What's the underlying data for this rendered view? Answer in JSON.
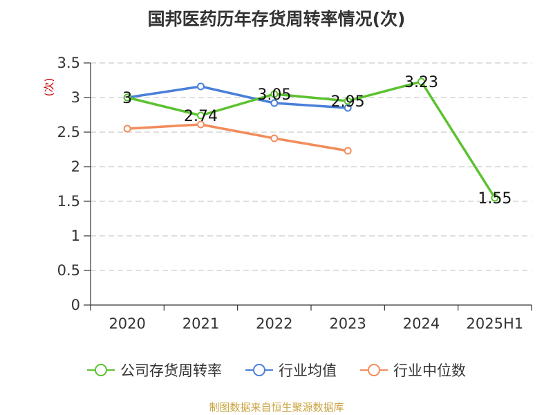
{
  "title": "国邦医药历年存货周转率情况(次)",
  "source": "制图数据来自恒生聚源数据库",
  "chart_data": {
    "type": "line",
    "title": "国邦医药历年存货周转率情况(次)",
    "ylabel": "(次)",
    "ylim": [
      0,
      3.5
    ],
    "yticks": [
      "0",
      "0.5",
      "1",
      "1.5",
      "2",
      "2.5",
      "3",
      "3.5"
    ],
    "categories": [
      "2020",
      "2021",
      "2022",
      "2023",
      "2024",
      "2025H1"
    ],
    "grid": true,
    "legend_position": "bottom",
    "series": [
      {
        "name": "公司存货周转率",
        "color": "#5cc22f",
        "values": [
          3,
          2.74,
          3.05,
          2.95,
          3.23,
          1.55
        ],
        "labels": [
          "3",
          "2.74",
          "3.05",
          "2.95",
          "3.23",
          "1.55"
        ]
      },
      {
        "name": "行业均值",
        "color": "#4a7fd9",
        "values": [
          3.0,
          3.16,
          2.92,
          2.85,
          null,
          null
        ]
      },
      {
        "name": "行业中位数",
        "color": "#f28c5b",
        "values": [
          2.55,
          2.61,
          2.41,
          2.23,
          null,
          null
        ]
      }
    ]
  }
}
